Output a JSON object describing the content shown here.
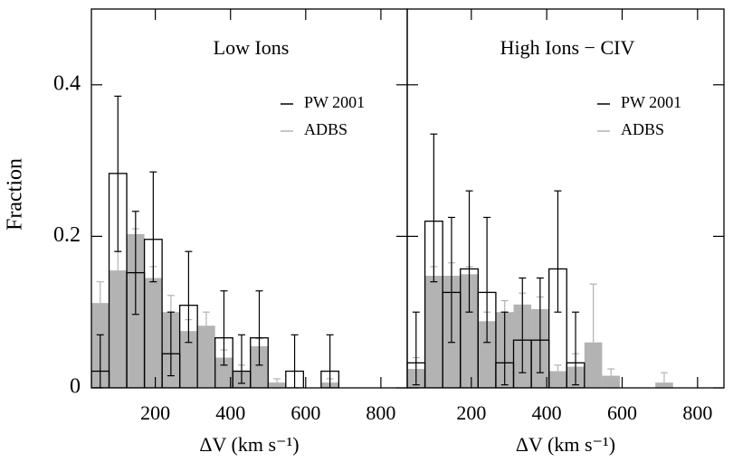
{
  "chart_data": [
    {
      "type": "histogram",
      "title": "Low Ions",
      "x_label": "ΔV (km s⁻¹)",
      "y_label": "Fraction",
      "bins": [
        30,
        77,
        124,
        171,
        218,
        265,
        312,
        359,
        406,
        453,
        500,
        547,
        594,
        641,
        688,
        735,
        782
      ],
      "xlim": [
        30,
        870
      ],
      "ylim": [
        0,
        0.5
      ],
      "xticks": [
        200,
        400,
        600,
        800
      ],
      "yticks": [
        0,
        0.2,
        0.4
      ],
      "series": [
        {
          "name": "ADBS",
          "color": "#b3b3b3",
          "filled": true,
          "values": [
            0.112,
            0.155,
            0.203,
            0.145,
            0.1,
            0.075,
            0.082,
            0.04,
            0.022,
            0.055,
            0.007,
            0,
            0,
            0.007,
            0,
            0
          ],
          "err_hi": [
            0.14,
            0.18,
            0.21,
            0.16,
            0.122,
            0.09,
            0.1,
            0.05,
            0.03,
            0.065,
            0.012,
            null,
            null,
            0.012,
            null,
            null
          ]
        },
        {
          "name": "PW 2001",
          "color": "#000000",
          "filled": false,
          "values": [
            0.022,
            0.283,
            0.152,
            0.196,
            0.045,
            0.109,
            0,
            0.066,
            0.022,
            0.066,
            0,
            0.022,
            0,
            0.022,
            0,
            0
          ],
          "err_lo": [
            0,
            0.18,
            0.097,
            0.14,
            0.016,
            0.06,
            null,
            0.03,
            0.006,
            0.03,
            null,
            0,
            null,
            0,
            null,
            null
          ],
          "err_hi": [
            0.07,
            0.385,
            0.233,
            0.285,
            0.1,
            0.18,
            null,
            0.128,
            0.07,
            0.128,
            null,
            0.07,
            null,
            0.07,
            null,
            null
          ]
        }
      ]
    },
    {
      "type": "histogram",
      "title": "High Ions − CIV",
      "x_label": "ΔV (km s⁻¹)",
      "bins": [
        30,
        77,
        124,
        171,
        218,
        265,
        312,
        359,
        406,
        453,
        500,
        547,
        594,
        641,
        688,
        735,
        782
      ],
      "xlim": [
        30,
        870
      ],
      "ylim": [
        0,
        0.5
      ],
      "xticks": [
        200,
        400,
        600,
        800
      ],
      "series": [
        {
          "name": "ADBS",
          "color": "#b3b3b3",
          "filled": true,
          "values": [
            0.025,
            0.148,
            0.148,
            0.15,
            0.088,
            0.1,
            0.11,
            0.104,
            0.022,
            0.028,
            0.06,
            0.016,
            0,
            0,
            0.007,
            0
          ],
          "err_hi": [
            0.04,
            0.16,
            0.165,
            0.16,
            0.1,
            0.115,
            0.125,
            0.12,
            0.03,
            0.045,
            0.137,
            0.025,
            null,
            null,
            0.02,
            null
          ]
        },
        {
          "name": "PW 2001",
          "color": "#000000",
          "filled": false,
          "values": [
            0.033,
            0.22,
            0.126,
            0.157,
            0.126,
            0.033,
            0.063,
            0.063,
            0.157,
            0.033,
            0,
            0,
            0,
            0,
            0,
            0
          ],
          "err_lo": [
            0.004,
            0.14,
            0.06,
            0.1,
            0.06,
            0.004,
            0.02,
            0.02,
            0.1,
            0.004,
            null,
            null,
            null,
            null,
            null,
            null
          ],
          "err_hi": [
            0.1,
            0.335,
            0.225,
            0.26,
            0.225,
            0.1,
            0.145,
            0.145,
            0.26,
            0.1,
            null,
            null,
            null,
            null,
            null,
            null
          ]
        }
      ]
    }
  ]
}
